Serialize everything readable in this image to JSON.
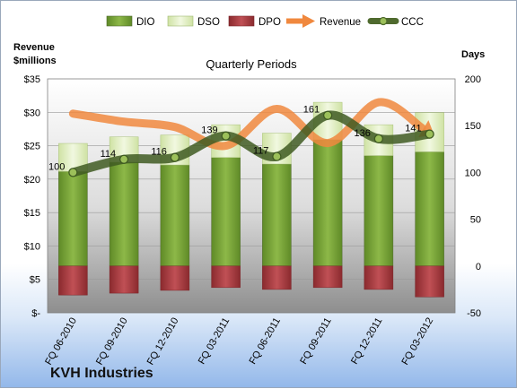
{
  "chart_data": {
    "type": "bar",
    "title": "Quarterly Periods",
    "company": "KVH Industries",
    "ylabel_left": "Revenue\n$millions",
    "ylabel_right": "Days",
    "categories": [
      "FQ 06-2010",
      "FQ 09-2010",
      "FQ 12-2010",
      "FQ 03-2011",
      "FQ 06-2011",
      "FQ 09-2011",
      "FQ 12-2011",
      "FQ 03-2012"
    ],
    "left_axis": {
      "min": 0,
      "max": 35,
      "ticks": [
        "$-",
        "$5",
        "$10",
        "$15",
        "$20",
        "$25",
        "$30",
        "$35"
      ]
    },
    "right_axis": {
      "min": -50,
      "max": 200,
      "ticks": [
        "-50",
        "0",
        "50",
        "100",
        "150",
        "200"
      ]
    },
    "series": [
      {
        "name": "DIO",
        "kind": "stacked-bar",
        "axis": "right",
        "color": "#7fa83a",
        "values": [
          101,
          111,
          108,
          116,
          109,
          135,
          118,
          122
        ]
      },
      {
        "name": "DSO",
        "kind": "stacked-bar",
        "axis": "right",
        "color": "#e8f2cf",
        "values": [
          30,
          27,
          32,
          35,
          33,
          40,
          33,
          42
        ]
      },
      {
        "name": "DPO",
        "kind": "negative-bar",
        "axis": "right",
        "color": "#b04044",
        "values": [
          -31,
          -29,
          -26,
          -23,
          -25,
          -23,
          -25,
          -33
        ]
      },
      {
        "name": "Revenue",
        "kind": "line",
        "axis": "left",
        "color": "#f0883e",
        "values": [
          29.8,
          28.6,
          27.8,
          25.0,
          30.5,
          25.4,
          31.5,
          27.0
        ]
      },
      {
        "name": "CCC",
        "kind": "line",
        "axis": "right",
        "color": "#4f6a2e",
        "values": [
          100,
          114,
          116,
          139,
          117,
          161,
          136,
          141
        ]
      }
    ],
    "ccc_labels": [
      "100",
      "114",
      "116",
      "139",
      "117",
      "161",
      "136",
      "141"
    ],
    "legend_position": "top"
  }
}
